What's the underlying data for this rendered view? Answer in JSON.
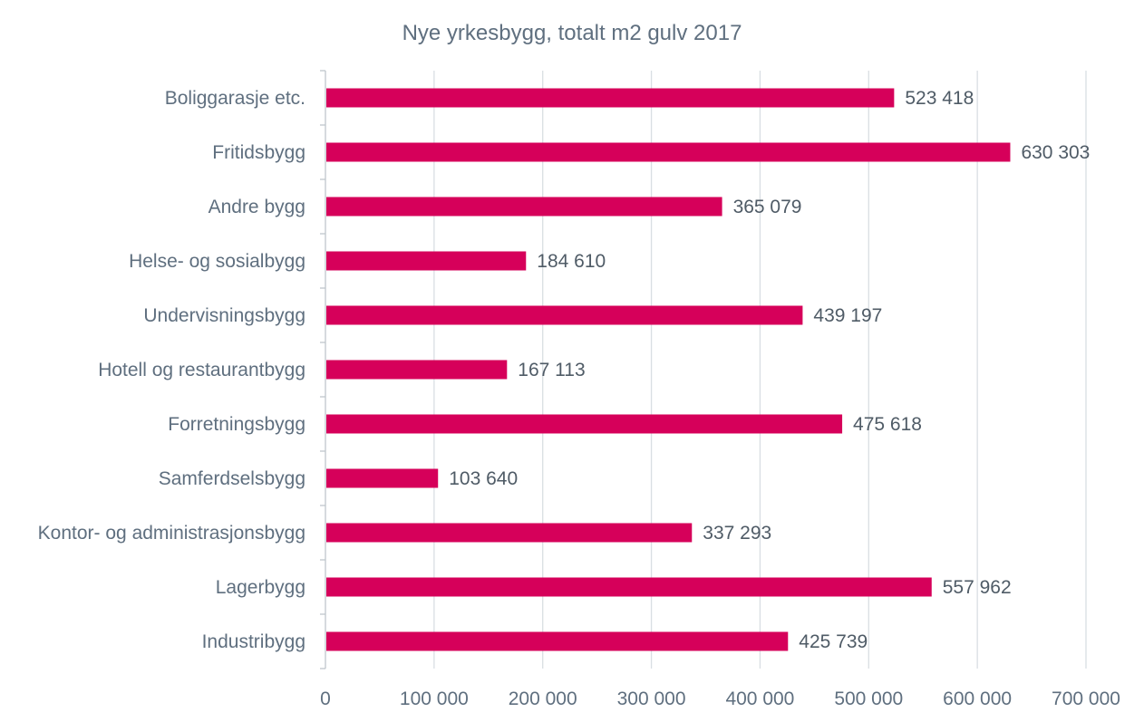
{
  "chart_data": {
    "type": "bar",
    "orientation": "horizontal",
    "title": "Nye yrkesbygg, totalt m2 gulv 2017",
    "xlabel": "",
    "ylabel": "",
    "xlim": [
      0,
      700000
    ],
    "ticks": [
      0,
      100000,
      200000,
      300000,
      400000,
      500000,
      600000,
      700000
    ],
    "tick_labels": [
      "0",
      "100 000",
      "200 000",
      "300 000",
      "400 000",
      "500 000",
      "600 000",
      "700 000"
    ],
    "grid": true,
    "legend": "none",
    "bar_color": "#d6005a",
    "categories": [
      "Boliggarasje etc.",
      "Fritidsbygg",
      "Andre bygg",
      "Helse- og sosialbygg",
      "Undervisningsbygg",
      "Hotell og restaurantbygg",
      "Forretningsbygg",
      "Samferdselsbygg",
      "Kontor- og administrasjonsbygg",
      "Lagerbygg",
      "Industribygg"
    ],
    "values": [
      523418,
      630303,
      365079,
      184610,
      439197,
      167113,
      475618,
      103640,
      337293,
      557962,
      425739
    ],
    "value_labels": [
      "523 418",
      "630 303",
      "365 079",
      "184 610",
      "439 197",
      "167 113",
      "475 618",
      "103 640",
      "337 293",
      "557 962",
      "425 739"
    ]
  }
}
